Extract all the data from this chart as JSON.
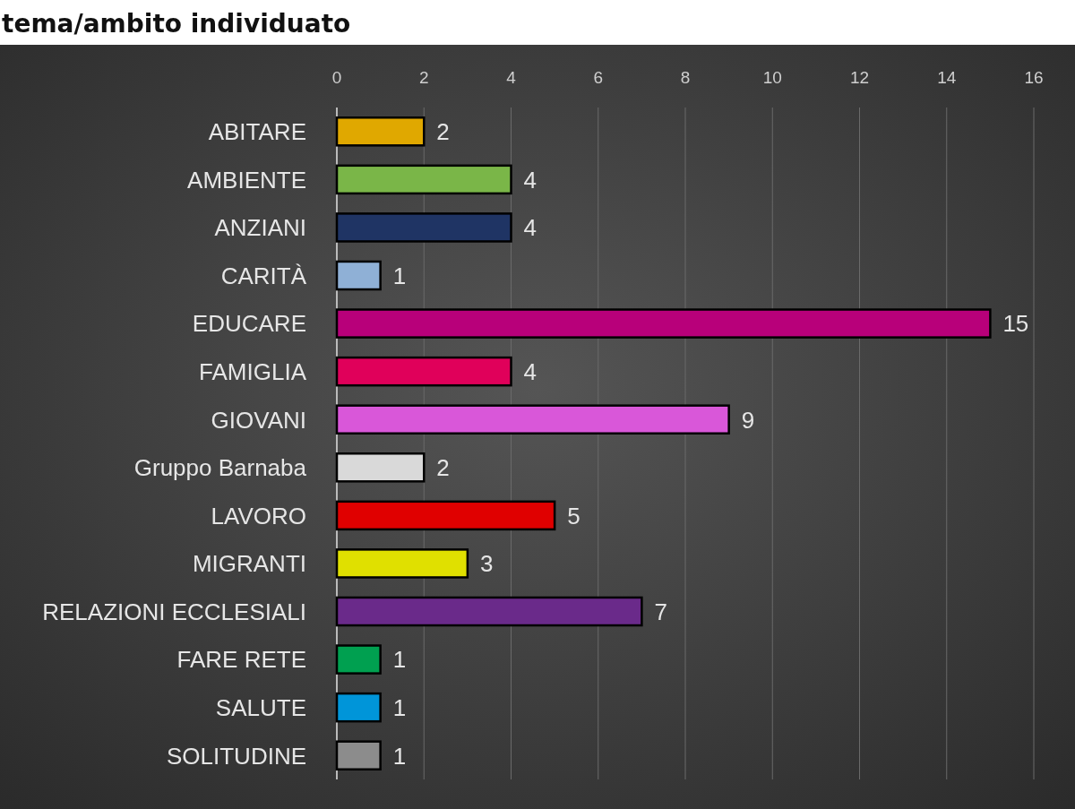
{
  "chart_data": {
    "type": "bar",
    "orientation": "horizontal",
    "title": "tema/ambito individuato",
    "categories": [
      "ABITARE",
      "AMBIENTE",
      "ANZIANI",
      "CARITÀ",
      "EDUCARE",
      "FAMIGLIA",
      "GIOVANI",
      "Gruppo Barnaba",
      "LAVORO",
      "MIGRANTI",
      "RELAZIONI ECCLESIALI",
      "FARE RETE",
      "SALUTE",
      "SOLITUDINE"
    ],
    "values": [
      2,
      4,
      4,
      1,
      15,
      4,
      9,
      2,
      5,
      3,
      7,
      1,
      1,
      1
    ],
    "colors": [
      "#e0a800",
      "#7ab648",
      "#1f3464",
      "#8fb0d6",
      "#b8007a",
      "#e0005a",
      "#d957d9",
      "#d9d9d9",
      "#e00000",
      "#e0e000",
      "#6a2a8a",
      "#00a050",
      "#0095d9",
      "#8c8c8c"
    ],
    "xlim": [
      0,
      16
    ],
    "xticks": [
      0,
      2,
      4,
      6,
      8,
      10,
      12,
      14,
      16
    ],
    "grid": "x",
    "data_labels": true
  }
}
